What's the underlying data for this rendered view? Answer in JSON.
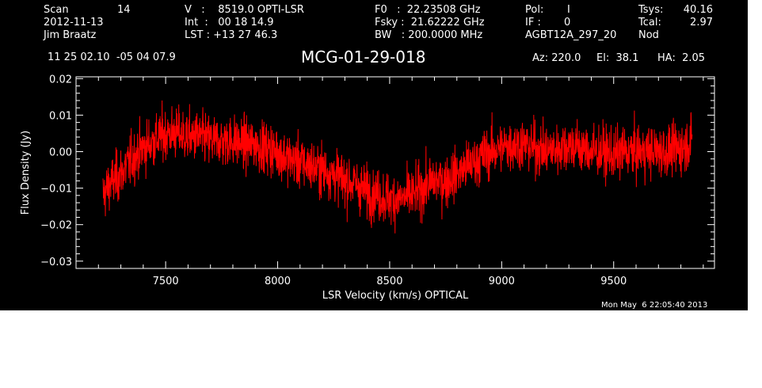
{
  "header": {
    "col1": {
      "scan_label": "Scan",
      "scan_value": "14",
      "date": "2012-11-13",
      "observer": "Jim Braatz",
      "coords": "11 25 02.10  -05 04 07.9"
    },
    "col2": {
      "v_line": "V   :    8519.0 OPTI-LSR",
      "int_line": "Int  :   00 18 14.9",
      "lst_line": "LST : +13 27 46.3"
    },
    "col3": {
      "f0_line": "F0   :  22.23508 GHz",
      "fsky_line": "Fsky :  21.62222 GHz",
      "bw_line": "BW   : 200.0000 MHz"
    },
    "col4": {
      "pol_label": "Pol:",
      "pol_value": "I",
      "if_label": "IF :",
      "if_value": "0",
      "project": "AGBT12A_297_20"
    },
    "col5": {
      "tsys_label": "Tsys:",
      "tsys_value": "40.16",
      "tcal_label": "Tcal:",
      "tcal_value": "2.97",
      "mode": "Nod"
    },
    "pointing": {
      "az": "Az: 220.0",
      "el": "El:  38.1",
      "ha": "HA:  2.05"
    }
  },
  "source_name": "MCG-01-29-018",
  "datestamp": "Mon May  6 22:05:40 2013",
  "colors": {
    "background": "#000000",
    "trace": "#ff0000",
    "axes": "#ffffff"
  },
  "chart_data": {
    "type": "line",
    "title": "MCG-01-29-018",
    "xlabel": "LSR Velocity (km/s) OPTICAL",
    "ylabel": "Flux Density (Jy)",
    "xlim": [
      7100,
      9950
    ],
    "ylim": [
      -0.032,
      0.0205
    ],
    "xticks": [
      7500,
      8000,
      8500,
      9000,
      9500
    ],
    "xtick_labels": [
      "7500",
      "8000",
      "8500",
      "9000",
      "9500"
    ],
    "yticks": [
      -0.03,
      -0.02,
      -0.01,
      0.0,
      0.01,
      0.02
    ],
    "ytick_labels": [
      "−0.03",
      "−0.02",
      "−0.01",
      "0.00",
      "0.01",
      "0.02"
    ],
    "grid": false,
    "series": [
      {
        "x": [
          7220,
          7250,
          7300,
          7350,
          7400,
          7450,
          7500,
          7550,
          7600,
          7650,
          7700,
          7750,
          7800,
          7850,
          7900,
          7950,
          8000,
          8050,
          8100,
          8150,
          8200,
          8250,
          8300,
          8350,
          8400,
          8450,
          8500,
          8550,
          8600,
          8650,
          8700,
          8750,
          8800,
          8850,
          8900,
          8950,
          9000,
          9050,
          9100,
          9150,
          9200,
          9250,
          9300,
          9350,
          9400,
          9450,
          9500,
          9550,
          9600,
          9650,
          9700,
          9750,
          9800,
          9850
        ],
        "y": [
          -0.012,
          -0.009,
          -0.006,
          -0.002,
          0.001,
          0.003,
          0.005,
          0.005,
          0.004,
          0.004,
          0.003,
          0.003,
          0.003,
          0.002,
          0.002,
          0.001,
          0.0,
          -0.002,
          -0.003,
          -0.004,
          -0.005,
          -0.006,
          -0.008,
          -0.009,
          -0.011,
          -0.012,
          -0.013,
          -0.013,
          -0.012,
          -0.01,
          -0.008,
          -0.008,
          -0.006,
          -0.004,
          -0.002,
          0.0,
          0.001,
          0.002,
          0.002,
          0.001,
          0.0,
          0.001,
          0.002,
          0.001,
          0.0,
          0.0,
          -0.001,
          0.0,
          0.0,
          0.0,
          0.0,
          0.0,
          0.001,
          0.003
        ],
        "noise_rms": 0.0035
      }
    ]
  }
}
